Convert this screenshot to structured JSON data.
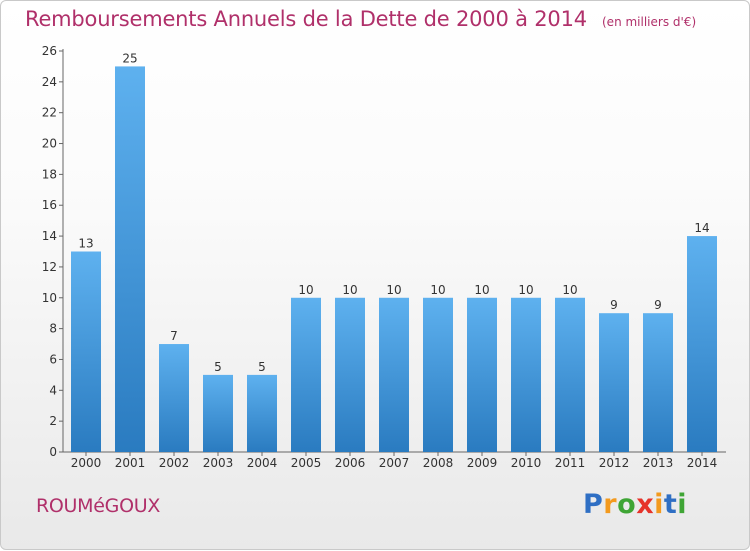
{
  "title": "Remboursements Annuels de la Dette de 2000 à 2014",
  "unit_note": "(en milliers d'€)",
  "commune": "ROUMéGOUX",
  "brand": {
    "letters": [
      "P",
      "r",
      "o",
      "x",
      "i",
      "t",
      "i"
    ],
    "colors": [
      "#2f6fc4",
      "#f39a1e",
      "#3fa535",
      "#e6332a",
      "#f39a1e",
      "#2f6fc4",
      "#3fa535"
    ]
  },
  "colors": {
    "accent": "#b0306a",
    "bar_light": "#5eb1ef",
    "bar_dark": "#2a7bc0"
  },
  "chart_data": {
    "type": "bar",
    "categories": [
      "2000",
      "2001",
      "2002",
      "2003",
      "2004",
      "2005",
      "2006",
      "2007",
      "2008",
      "2009",
      "2010",
      "2011",
      "2012",
      "2013",
      "2014"
    ],
    "values": [
      13,
      25,
      7,
      5,
      5,
      10,
      10,
      10,
      10,
      10,
      10,
      10,
      9,
      9,
      14
    ],
    "ylim": [
      0,
      26
    ],
    "yticks": [
      0,
      2,
      4,
      6,
      8,
      10,
      12,
      14,
      16,
      18,
      20,
      22,
      24,
      26
    ],
    "grid": false,
    "data_labels": true
  }
}
